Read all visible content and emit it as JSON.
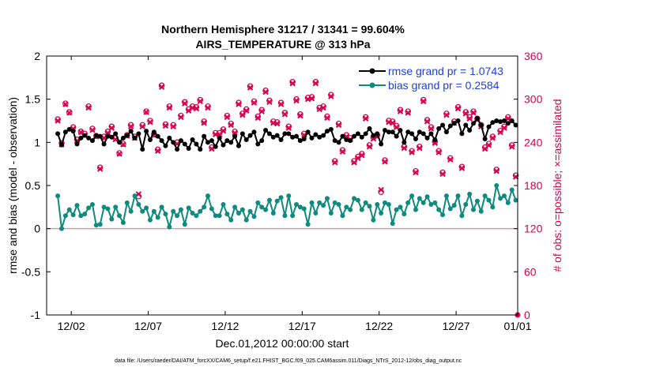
{
  "colors": {
    "rmse": "#000000",
    "bias": "#0f8a7e",
    "obs": "#d6004f",
    "legend_text": "#1f3fd6",
    "zero_line": "#c8a0a8"
  },
  "chart_data": {
    "type": "line",
    "title": "Northern Hemisphere 31217 / 31341 = 99.604%",
    "subtitle": "AIRS_TEMPERATURE @ 313 hPa",
    "xlabel": "Dec.01,2012 00:00:00 start",
    "ylabel": "rmse and bias (model - observation)",
    "ylabel_right": "# of obs: o=possible; ×=assimilated",
    "footer": "data file: /Users/raeder/DAI/ATM_forcXX/CAM6_setup/f.e21.FHIST_BGC.f09_025.CAM6assim.011/Diags_NTrS_2012-12/obs_diag_output.nc",
    "x_range": [
      0.4,
      31.0
    ],
    "x_ticks": [
      2,
      7,
      12,
      17,
      22,
      27,
      32
    ],
    "x_tick_labels": [
      "12/02",
      "12/07",
      "12/12",
      "12/17",
      "12/22",
      "12/27",
      "01/01"
    ],
    "ylim": [
      -1,
      2
    ],
    "y_ticks": [
      -1,
      -0.5,
      0,
      0.5,
      1,
      1.5,
      2
    ],
    "y_tick_labels": [
      "-1",
      "-0.5",
      "0",
      "0.5",
      "1",
      "1.5",
      "2"
    ],
    "ylim_right": [
      0,
      360
    ],
    "y2_ticks": [
      0,
      60,
      120,
      180,
      240,
      300,
      360
    ],
    "y2_tick_labels": [
      "0",
      "60",
      "120",
      "180",
      "240",
      "300",
      "360"
    ],
    "legend": [
      "rmse grand pr = 1.0743",
      "bias grand pr = 0.2584"
    ],
    "legend_position": "top-right",
    "grid": false,
    "x": [
      1.125,
      1.375,
      1.625,
      1.875,
      2.125,
      2.375,
      2.625,
      2.875,
      3.125,
      3.375,
      3.625,
      3.875,
      4.125,
      4.375,
      4.625,
      4.875,
      5.125,
      5.375,
      5.625,
      5.875,
      6.125,
      6.375,
      6.625,
      6.875,
      7.125,
      7.375,
      7.625,
      7.875,
      8.125,
      8.375,
      8.625,
      8.875,
      9.125,
      9.375,
      9.625,
      9.875,
      10.125,
      10.375,
      10.625,
      10.875,
      11.125,
      11.375,
      11.625,
      11.875,
      12.125,
      12.375,
      12.625,
      12.875,
      13.125,
      13.375,
      13.625,
      13.875,
      14.125,
      14.375,
      14.625,
      14.875,
      15.125,
      15.375,
      15.625,
      15.875,
      16.125,
      16.375,
      16.625,
      16.875,
      17.125,
      17.375,
      17.625,
      17.875,
      18.125,
      18.375,
      18.625,
      18.875,
      19.125,
      19.375,
      19.625,
      19.875,
      20.125,
      20.375,
      20.625,
      20.875,
      21.125,
      21.375,
      21.625,
      21.875,
      22.125,
      22.375,
      22.625,
      22.875,
      23.125,
      23.375,
      23.625,
      23.875,
      24.125,
      24.375,
      24.625,
      24.875,
      25.125,
      25.375,
      25.625,
      25.875,
      26.125,
      26.375,
      26.625,
      26.875,
      27.125,
      27.375,
      27.625,
      27.875,
      28.125,
      28.375,
      28.625,
      28.875,
      29.125,
      29.375,
      29.625,
      29.875,
      30.125,
      30.375,
      30.625,
      30.875
    ],
    "series": [
      {
        "name": "rmse grand pr = 1.0743",
        "values": [
          1.1,
          0.97,
          1.12,
          1.15,
          1.13,
          0.98,
          1.05,
          1.08,
          1.05,
          1.02,
          1.08,
          1.07,
          0.98,
          1.07,
          1.06,
          1.1,
          1.0,
          1.05,
          1.08,
          1.13,
          1.05,
          1.1,
          0.92,
          1.13,
          1.03,
          1.12,
          1.07,
          1.02,
          0.96,
          1.05,
          1.0,
          0.92,
          1.02,
          0.98,
          0.93,
          1.03,
          0.98,
          0.92,
          1.07,
          1.0,
          1.02,
          0.95,
          1.05,
          0.97,
          1.02,
          1.0,
          1.07,
          0.96,
          1.1,
          1.03,
          1.08,
          1.12,
          0.98,
          1.02,
          1.14,
          1.1,
          1.06,
          1.08,
          1.03,
          1.1,
          1.1,
          1.06,
          1.07,
          1.02,
          1.04,
          1.12,
          1.05,
          1.09,
          1.06,
          1.08,
          1.13,
          1.15,
          1.02,
          1.0,
          1.07,
          1.03,
          1.02,
          1.07,
          1.1,
          1.06,
          1.1,
          1.16,
          1.08,
          1.1,
          0.98,
          1.14,
          1.12,
          1.12,
          1.07,
          1.14,
          1.0,
          1.12,
          1.1,
          1.04,
          1.12,
          1.1,
          1.05,
          1.1,
          1.03,
          1.16,
          1.2,
          1.12,
          1.19,
          1.22,
          1.25,
          1.1,
          1.2,
          1.14,
          1.22,
          1.28,
          1.2,
          1.04,
          1.18,
          1.23,
          1.25,
          1.24,
          1.25,
          1.22,
          1.25,
          1.2
        ]
      },
      {
        "name": "bias grand pr = 0.2584",
        "values": [
          0.38,
          0.0,
          0.15,
          0.22,
          0.16,
          0.27,
          0.15,
          0.17,
          0.24,
          0.28,
          0.04,
          0.05,
          0.25,
          0.23,
          0.11,
          0.25,
          0.15,
          0.07,
          0.3,
          0.2,
          0.38,
          0.28,
          0.2,
          0.24,
          0.1,
          0.2,
          0.13,
          0.25,
          0.17,
          0.02,
          0.2,
          0.15,
          0.22,
          0.05,
          0.24,
          0.18,
          0.15,
          0.2,
          0.25,
          0.38,
          0.23,
          0.15,
          0.15,
          0.28,
          0.17,
          0.1,
          0.25,
          0.18,
          0.22,
          0.1,
          0.2,
          0.14,
          0.3,
          0.25,
          0.22,
          0.33,
          0.18,
          0.32,
          0.36,
          0.15,
          0.38,
          0.15,
          0.28,
          0.25,
          0.23,
          0.05,
          0.3,
          0.18,
          0.3,
          0.27,
          0.35,
          0.18,
          0.3,
          0.28,
          0.15,
          0.25,
          0.22,
          0.35,
          0.33,
          0.22,
          0.3,
          0.26,
          0.1,
          0.28,
          0.18,
          0.3,
          0.28,
          0.06,
          0.22,
          0.25,
          0.17,
          0.3,
          0.38,
          0.22,
          0.35,
          0.3,
          0.37,
          0.28,
          0.3,
          0.22,
          0.16,
          0.38,
          0.23,
          0.27,
          0.38,
          0.15,
          0.28,
          0.4,
          0.22,
          0.32,
          0.2,
          0.38,
          0.33,
          0.25,
          0.5,
          0.35,
          0.38,
          0.3,
          0.45,
          0.33
        ]
      }
    ],
    "obs_possible": [
      272,
      239,
      294,
      282,
      261,
      244,
      255,
      252,
      290,
      259,
      249,
      205,
      248,
      255,
      262,
      246,
      225,
      238,
      250,
      264,
      248,
      165,
      264,
      283,
      270,
      251,
      230,
      319,
      265,
      290,
      264,
      240,
      277,
      296,
      286,
      290,
      289,
      299,
      269,
      290,
      233,
      253,
      253,
      258,
      277,
      266,
      255,
      295,
      280,
      286,
      318,
      297,
      276,
      285,
      312,
      298,
      269,
      268,
      295,
      281,
      262,
      324,
      300,
      279,
      252,
      302,
      303,
      324,
      288,
      290,
      276,
      306,
      214,
      266,
      229,
      250,
      246,
      214,
      220,
      224,
      275,
      236,
      247,
      250,
      171,
      215,
      270,
      269,
      263,
      285,
      234,
      283,
      228,
      200,
      234,
      299,
      271,
      261,
      241,
      228,
      198,
      280,
      218,
      269,
      289,
      206,
      282,
      275,
      283,
      273,
      264,
      233,
      238,
      248,
      202,
      256,
      262,
      275,
      236,
      194
    ],
    "obs_assimilated": [
      270,
      237,
      293,
      281,
      259,
      242,
      254,
      250,
      288,
      257,
      248,
      203,
      246,
      253,
      260,
      244,
      224,
      237,
      249,
      262,
      246,
      168,
      262,
      282,
      268,
      250,
      228,
      317,
      263,
      288,
      262,
      238,
      275,
      294,
      284,
      288,
      287,
      297,
      267,
      288,
      231,
      251,
      251,
      256,
      275,
      264,
      253,
      293,
      278,
      284,
      316,
      295,
      274,
      283,
      310,
      296,
      267,
      266,
      293,
      279,
      260,
      322,
      298,
      277,
      250,
      300,
      301,
      322,
      286,
      288,
      274,
      304,
      212,
      264,
      227,
      248,
      244,
      212,
      218,
      222,
      273,
      234,
      245,
      248,
      174,
      213,
      268,
      267,
      261,
      283,
      232,
      281,
      226,
      198,
      232,
      297,
      269,
      259,
      239,
      226,
      196,
      278,
      216,
      267,
      287,
      204,
      280,
      273,
      281,
      271,
      262,
      231,
      236,
      246,
      200,
      254,
      260,
      273,
      234,
      192
    ]
  }
}
